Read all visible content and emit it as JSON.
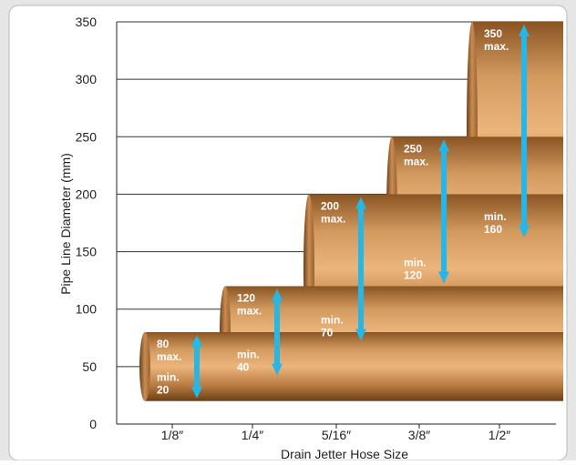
{
  "chart_data": {
    "type": "bar",
    "xlabel": "Drain Jetter Hose Size",
    "ylabel": "Pipe Line Diameter (mm)",
    "ylim": [
      0,
      350
    ],
    "yticks": [
      0,
      50,
      100,
      150,
      200,
      250,
      300,
      350
    ],
    "grid": true,
    "categories": [
      "1/8″",
      "1/4″",
      "5/16″",
      "3/8″",
      "1/2″"
    ],
    "min_values": [
      20,
      40,
      70,
      120,
      160
    ],
    "max_values": [
      80,
      120,
      200,
      250,
      350
    ],
    "min_labels": [
      "min.\n20",
      "min.\n40",
      "min.\n70",
      "min.\n120",
      "min.\n160"
    ],
    "max_labels": [
      "80\nmax.",
      "120\nmax.",
      "200\nmax.",
      "250\nmax.",
      "350\nmax."
    ]
  },
  "colors": {
    "background": "#e6e6e6",
    "plot": "#ffffff",
    "copper_dark": "#7a4a1e",
    "copper_light": "#e7b27a",
    "arrow": "#27b6e8",
    "label": "#ffffff"
  }
}
